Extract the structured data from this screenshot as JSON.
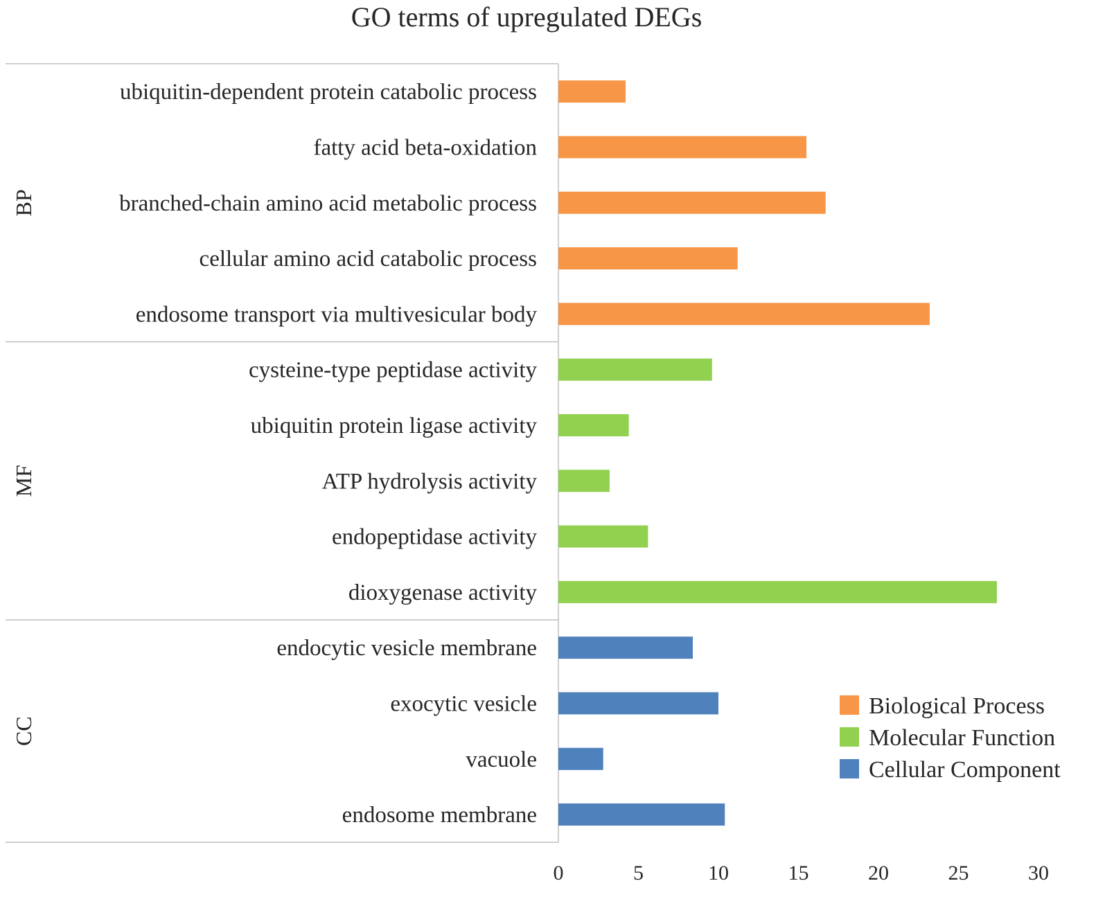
{
  "chart_data": {
    "type": "bar",
    "orientation": "horizontal",
    "title": "GO terms of upregulated DEGs",
    "xlabel": "",
    "ylabel": "",
    "xlim": [
      0,
      30
    ],
    "x_ticks": [
      0,
      5,
      10,
      15,
      20,
      25,
      30
    ],
    "grid": false,
    "legend_position": "bottom-right",
    "groups": [
      {
        "label": "BP",
        "series": "Biological Process",
        "color": "#F79646",
        "categories": [
          "ubiquitin-dependent protein catabolic process",
          "fatty acid beta-oxidation",
          "branched-chain amino acid metabolic process",
          "cellular amino acid catabolic process",
          "endosome transport via multivesicular body"
        ],
        "values": [
          4.2,
          15.5,
          16.7,
          11.2,
          23.2
        ]
      },
      {
        "label": "MF",
        "series": "Molecular Function",
        "color": "#92D050",
        "categories": [
          "cysteine-type peptidase activity",
          "ubiquitin protein ligase activity",
          "ATP hydrolysis activity",
          "endopeptidase activity",
          "dioxygenase activity"
        ],
        "values": [
          9.6,
          4.4,
          3.2,
          5.6,
          27.4
        ]
      },
      {
        "label": "CC",
        "series": "Cellular Component",
        "color": "#4F81BD",
        "categories": [
          "endocytic vesicle membrane",
          "exocytic vesicle",
          "vacuole",
          "endosome membrane"
        ],
        "values": [
          8.4,
          10.0,
          2.8,
          10.4
        ]
      }
    ],
    "legend": [
      {
        "label": "Biological Process",
        "color": "#F79646"
      },
      {
        "label": "Molecular Function",
        "color": "#92D050"
      },
      {
        "label": "Cellular Component",
        "color": "#4F81BD"
      }
    ]
  }
}
